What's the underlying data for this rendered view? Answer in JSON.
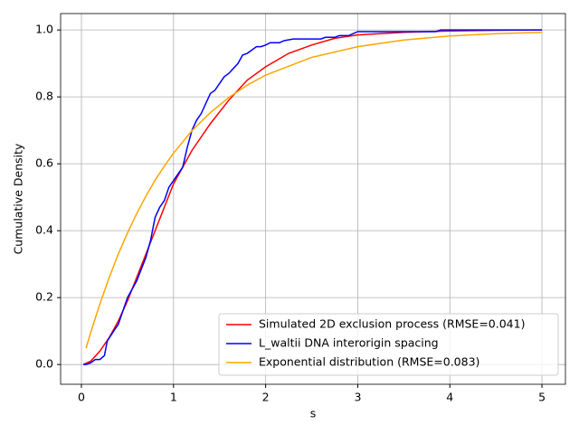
{
  "chart_data": {
    "type": "line",
    "xlabel": "s",
    "ylabel": "Cumulative Density",
    "xlim": [
      -0.226,
      5.255
    ],
    "ylim": [
      -0.059,
      1.049
    ],
    "xticks": [
      0,
      1,
      2,
      3,
      4,
      5
    ],
    "yticks": [
      {
        "value": 0,
        "label": "0.0"
      },
      {
        "value": 0.2,
        "label": "0.2"
      },
      {
        "value": 0.4,
        "label": "0.4"
      },
      {
        "value": 0.6,
        "label": "0.6"
      },
      {
        "value": 0.8,
        "label": "0.8"
      },
      {
        "value": 1.0,
        "label": "1.0"
      }
    ],
    "grid": true,
    "legend": "lower right",
    "series": [
      {
        "name": "Simulated 2D exclusion process (RMSE=0.041)",
        "color": "#ff0000",
        "x": [
          0.02,
          0.1,
          0.2,
          0.3,
          0.4,
          0.5,
          0.6,
          0.7,
          0.8,
          0.9,
          1.0,
          1.2,
          1.4,
          1.6,
          1.8,
          2.0,
          2.25,
          2.5,
          2.75,
          3.0,
          3.5,
          4.0,
          4.5,
          5.0
        ],
        "values": [
          0,
          0.01,
          0.04,
          0.08,
          0.13,
          0.19,
          0.26,
          0.33,
          0.4,
          0.47,
          0.54,
          0.64,
          0.72,
          0.79,
          0.85,
          0.89,
          0.93,
          0.955,
          0.975,
          0.985,
          0.993,
          0.997,
          0.999,
          1.0
        ]
      },
      {
        "name": "L_waltii DNA interorigin spacing",
        "color": "#0000ff",
        "x": [
          0.02,
          0.05,
          0.1,
          0.15,
          0.2,
          0.25,
          0.28,
          0.35,
          0.4,
          0.45,
          0.5,
          0.6,
          0.7,
          0.75,
          0.8,
          0.85,
          0.9,
          0.95,
          1.0,
          1.1,
          1.15,
          1.2,
          1.25,
          1.3,
          1.35,
          1.4,
          1.45,
          1.5,
          1.55,
          1.6,
          1.7,
          1.75,
          1.8,
          1.9,
          1.95,
          2.0,
          2.05,
          2.15,
          2.2,
          2.3,
          2.6,
          2.65,
          2.75,
          2.8,
          2.9,
          3.0,
          3.85,
          3.9,
          5.0
        ],
        "values": [
          0,
          0,
          0.005,
          0.015,
          0.015,
          0.027,
          0.07,
          0.1,
          0.12,
          0.16,
          0.2,
          0.25,
          0.32,
          0.37,
          0.44,
          0.47,
          0.49,
          0.53,
          0.55,
          0.59,
          0.65,
          0.7,
          0.73,
          0.75,
          0.78,
          0.81,
          0.82,
          0.84,
          0.86,
          0.87,
          0.9,
          0.925,
          0.93,
          0.95,
          0.95,
          0.955,
          0.962,
          0.962,
          0.968,
          0.973,
          0.973,
          0.978,
          0.978,
          0.983,
          0.983,
          0.995,
          0.995,
          1.0,
          1.0
        ]
      },
      {
        "name": "Exponential distribution (RMSE=0.083)",
        "color": "#ffa500",
        "x": [
          0.05,
          0.1,
          0.2,
          0.3,
          0.4,
          0.5,
          0.6,
          0.7,
          0.8,
          0.9,
          1.0,
          1.2,
          1.4,
          1.6,
          1.8,
          2.0,
          2.5,
          3.0,
          3.5,
          4.0,
          4.5,
          5.0
        ],
        "values": [
          0.049,
          0.095,
          0.181,
          0.259,
          0.33,
          0.393,
          0.451,
          0.503,
          0.551,
          0.593,
          0.632,
          0.699,
          0.753,
          0.798,
          0.835,
          0.865,
          0.918,
          0.95,
          0.97,
          0.982,
          0.989,
          0.993
        ]
      }
    ]
  }
}
